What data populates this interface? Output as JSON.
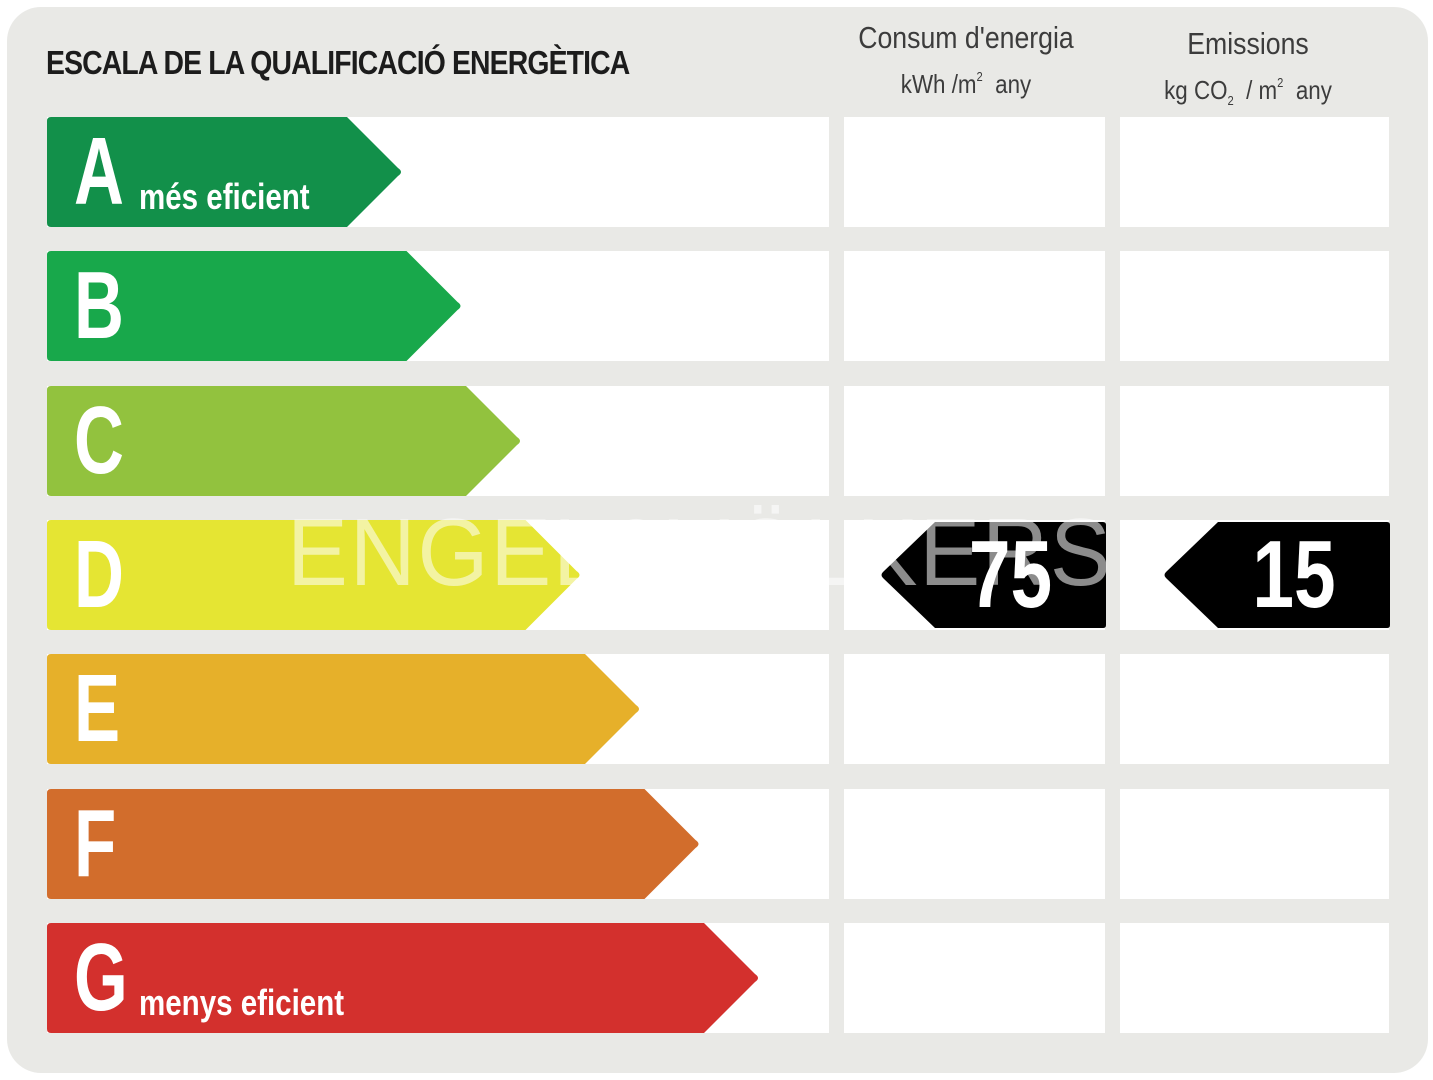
{
  "title": "ESCALA DE LA QUALIFICACIÓ ENERGÈTICA",
  "columns": {
    "consumption": {
      "heading": "Consum d'energia",
      "unit_prefix": "kWh /m",
      "unit_sup": "2",
      "unit_suffix": "any"
    },
    "emissions": {
      "heading": "Emissions",
      "unit_prefix": "kg CO",
      "unit_sub": "2",
      "unit_mid": "/ m",
      "unit_sup": "2",
      "unit_suffix": "any"
    }
  },
  "ratings": [
    {
      "letter": "A",
      "label": "més eficient",
      "color": "#12904a"
    },
    {
      "letter": "B",
      "label": "",
      "color": "#18a84b"
    },
    {
      "letter": "C",
      "label": "",
      "color": "#92c23e"
    },
    {
      "letter": "D",
      "label": "",
      "color": "#e5e533"
    },
    {
      "letter": "E",
      "label": "",
      "color": "#e6b02a"
    },
    {
      "letter": "F",
      "label": "",
      "color": "#d26d2c"
    },
    {
      "letter": "G",
      "label": "menys eficient",
      "color": "#d3302d"
    }
  ],
  "result": {
    "rating": "D",
    "consumption_value": "75",
    "emissions_value": "15",
    "badge_color": "#000000"
  },
  "watermark": "ENGEL&VÖLKERS"
}
